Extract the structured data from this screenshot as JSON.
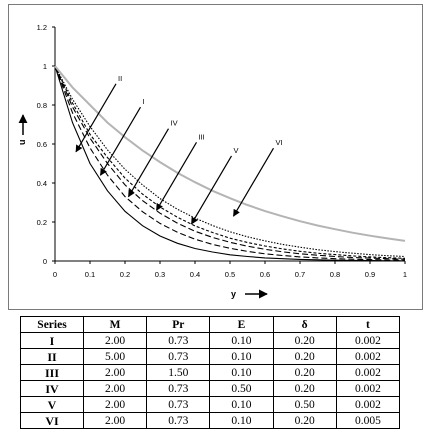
{
  "chart_data": {
    "type": "line",
    "xlabel": "y",
    "ylabel": "u",
    "xlim": [
      0,
      1
    ],
    "ylim": [
      0,
      1.2
    ],
    "x_ticks": [
      "0",
      "0.1",
      "0.2",
      "0.3",
      "0.4",
      "0.5",
      "0.6",
      "0.7",
      "0.8",
      "0.9",
      "1"
    ],
    "y_ticks": [
      "0",
      "0.2",
      "0.4",
      "0.6",
      "0.8",
      "1",
      "1.2"
    ],
    "grid": false,
    "x": [
      0,
      0.05,
      0.1,
      0.15,
      0.2,
      0.25,
      0.3,
      0.35,
      0.4,
      0.45,
      0.5,
      0.55,
      0.6,
      0.65,
      0.7,
      0.75,
      0.8,
      0.85,
      0.9,
      0.95,
      1.0
    ],
    "series": [
      {
        "name": "I",
        "style": "dashed",
        "color": "#000000",
        "values": [
          1.0,
          0.76,
          0.58,
          0.44,
          0.33,
          0.253,
          0.193,
          0.147,
          0.112,
          0.085,
          0.065,
          0.049,
          0.037,
          0.028,
          0.021,
          0.016,
          0.012,
          0.009,
          0.007,
          0.005,
          0.004
        ]
      },
      {
        "name": "II",
        "style": "solid",
        "color": "#000000",
        "values": [
          1.0,
          0.71,
          0.5,
          0.36,
          0.255,
          0.181,
          0.128,
          0.091,
          0.064,
          0.046,
          0.032,
          0.023,
          0.016,
          0.012,
          0.008,
          0.006,
          0.004,
          0.003,
          0.002,
          0.001,
          0.001
        ]
      },
      {
        "name": "III",
        "style": "dashed",
        "color": "#000000",
        "values": [
          1.0,
          0.79,
          0.63,
          0.5,
          0.39,
          0.31,
          0.245,
          0.194,
          0.153,
          0.121,
          0.096,
          0.076,
          0.06,
          0.047,
          0.037,
          0.03,
          0.023,
          0.018,
          0.015,
          0.012,
          0.009
        ]
      },
      {
        "name": "IV",
        "style": "dotted",
        "color": "#000000",
        "values": [
          1.0,
          0.81,
          0.65,
          0.53,
          0.425,
          0.343,
          0.277,
          0.224,
          0.18,
          0.146,
          0.117,
          0.095,
          0.077,
          0.062,
          0.05,
          0.04,
          0.033,
          0.026,
          0.021,
          0.017,
          0.014
        ]
      },
      {
        "name": "V",
        "style": "dotted-fine",
        "color": "#000000",
        "values": [
          1.0,
          0.83,
          0.69,
          0.57,
          0.47,
          0.39,
          0.32,
          0.265,
          0.22,
          0.182,
          0.15,
          0.124,
          0.103,
          0.085,
          0.071,
          0.058,
          0.048,
          0.04,
          0.033,
          0.027,
          0.023
        ]
      },
      {
        "name": "VI",
        "style": "solid",
        "color": "#b4b4b4",
        "values": [
          1.0,
          0.89,
          0.8,
          0.71,
          0.635,
          0.567,
          0.507,
          0.452,
          0.404,
          0.36,
          0.322,
          0.287,
          0.256,
          0.229,
          0.204,
          0.182,
          0.163,
          0.145,
          0.13,
          0.116,
          0.103
        ]
      }
    ],
    "annotations": [
      {
        "label": "II",
        "target": [
          0.06,
          0.56
        ]
      },
      {
        "label": "I",
        "target": [
          0.13,
          0.44
        ]
      },
      {
        "label": "IV",
        "target": [
          0.21,
          0.33
        ]
      },
      {
        "label": "III",
        "target": [
          0.29,
          0.26
        ]
      },
      {
        "label": "V",
        "target": [
          0.39,
          0.19
        ]
      },
      {
        "label": "VI",
        "target": [
          0.51,
          0.23
        ]
      }
    ]
  },
  "table": {
    "headers": [
      "Series",
      "M",
      "Pr",
      "E",
      "δ",
      "t"
    ],
    "rows": [
      [
        "I",
        "2.00",
        "0.73",
        "0.10",
        "0.20",
        "0.002"
      ],
      [
        "II",
        "5.00",
        "0.73",
        "0.10",
        "0.20",
        "0.002"
      ],
      [
        "III",
        "2.00",
        "1.50",
        "0.10",
        "0.20",
        "0.002"
      ],
      [
        "IV",
        "2.00",
        "0.73",
        "0.50",
        "0.20",
        "0.002"
      ],
      [
        "V",
        "2.00",
        "0.73",
        "0.10",
        "0.50",
        "0.002"
      ],
      [
        "VI",
        "2.00",
        "0.73",
        "0.10",
        "0.20",
        "0.005"
      ]
    ]
  }
}
